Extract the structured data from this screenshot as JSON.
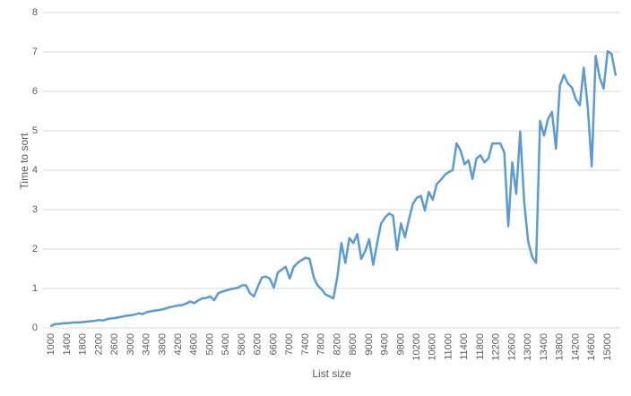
{
  "chart_data": {
    "type": "line",
    "x_label": "List size",
    "y_label": "Time to sort",
    "categories": [
      "1000",
      null,
      null,
      null,
      "1400",
      null,
      null,
      null,
      "1800",
      null,
      null,
      null,
      "2200",
      null,
      null,
      null,
      "2600",
      null,
      null,
      null,
      "3000",
      null,
      null,
      null,
      "3400",
      null,
      null,
      null,
      "3800",
      null,
      null,
      null,
      "4200",
      null,
      null,
      null,
      "4600",
      null,
      null,
      null,
      "5000",
      null,
      null,
      null,
      "5400",
      null,
      null,
      null,
      "5800",
      null,
      null,
      null,
      "6200",
      null,
      null,
      null,
      "6600",
      null,
      null,
      null,
      "7000",
      null,
      null,
      null,
      "7400",
      null,
      null,
      null,
      "7800",
      null,
      null,
      null,
      "8200",
      null,
      null,
      null,
      "8600",
      null,
      null,
      null,
      "9000",
      null,
      null,
      null,
      "9400",
      null,
      null,
      null,
      "9800",
      null,
      null,
      null,
      "10200",
      null,
      null,
      null,
      "10600",
      null,
      null,
      null,
      "11000",
      null,
      null,
      null,
      "11400",
      null,
      null,
      null,
      "11800",
      null,
      null,
      null,
      "12200",
      null,
      null,
      null,
      "12600",
      null,
      null,
      null,
      "13000",
      null,
      null,
      null,
      "13400",
      null,
      null,
      null,
      "13800",
      null,
      null,
      null,
      "14200",
      null,
      null,
      null,
      "14600",
      null,
      null,
      null,
      "15000",
      null,
      null
    ],
    "values": [
      0.05,
      0.1,
      0.1,
      0.12,
      0.12,
      0.13,
      0.14,
      0.14,
      0.15,
      0.16,
      0.17,
      0.18,
      0.2,
      0.19,
      0.22,
      0.24,
      0.25,
      0.27,
      0.29,
      0.31,
      0.32,
      0.34,
      0.37,
      0.35,
      0.4,
      0.42,
      0.44,
      0.45,
      0.47,
      0.5,
      0.53,
      0.55,
      0.57,
      0.58,
      0.62,
      0.67,
      0.63,
      0.7,
      0.75,
      0.76,
      0.8,
      0.7,
      0.88,
      0.92,
      0.95,
      0.98,
      1.0,
      1.02,
      1.08,
      1.08,
      0.88,
      0.8,
      1.05,
      1.28,
      1.3,
      1.25,
      1.02,
      1.4,
      1.48,
      1.55,
      1.25,
      1.55,
      1.65,
      1.72,
      1.78,
      1.75,
      1.3,
      1.08,
      0.98,
      0.85,
      0.8,
      0.75,
      1.3,
      2.15,
      1.65,
      2.28,
      2.15,
      2.38,
      1.75,
      1.95,
      2.25,
      1.6,
      2.15,
      2.65,
      2.8,
      2.9,
      2.85,
      1.98,
      2.65,
      2.3,
      2.75,
      3.15,
      3.3,
      3.35,
      2.98,
      3.45,
      3.25,
      3.65,
      3.75,
      3.88,
      3.95,
      4.0,
      4.68,
      4.5,
      4.15,
      4.25,
      3.78,
      4.3,
      4.38,
      4.2,
      4.3,
      4.68,
      4.68,
      4.68,
      4.45,
      2.58,
      4.2,
      3.4,
      4.98,
      3.2,
      2.2,
      1.8,
      1.65,
      5.25,
      4.88,
      5.3,
      5.48,
      4.55,
      6.15,
      6.42,
      6.2,
      6.1,
      5.8,
      5.65,
      6.6,
      5.6,
      4.1,
      6.9,
      6.35,
      6.07,
      7.02,
      6.95,
      6.42
    ],
    "color": "#5b9bd5",
    "ylim": [
      0,
      8
    ],
    "yticks": [
      0,
      1,
      2,
      3,
      4,
      5,
      6,
      7,
      8
    ],
    "grid": true
  }
}
